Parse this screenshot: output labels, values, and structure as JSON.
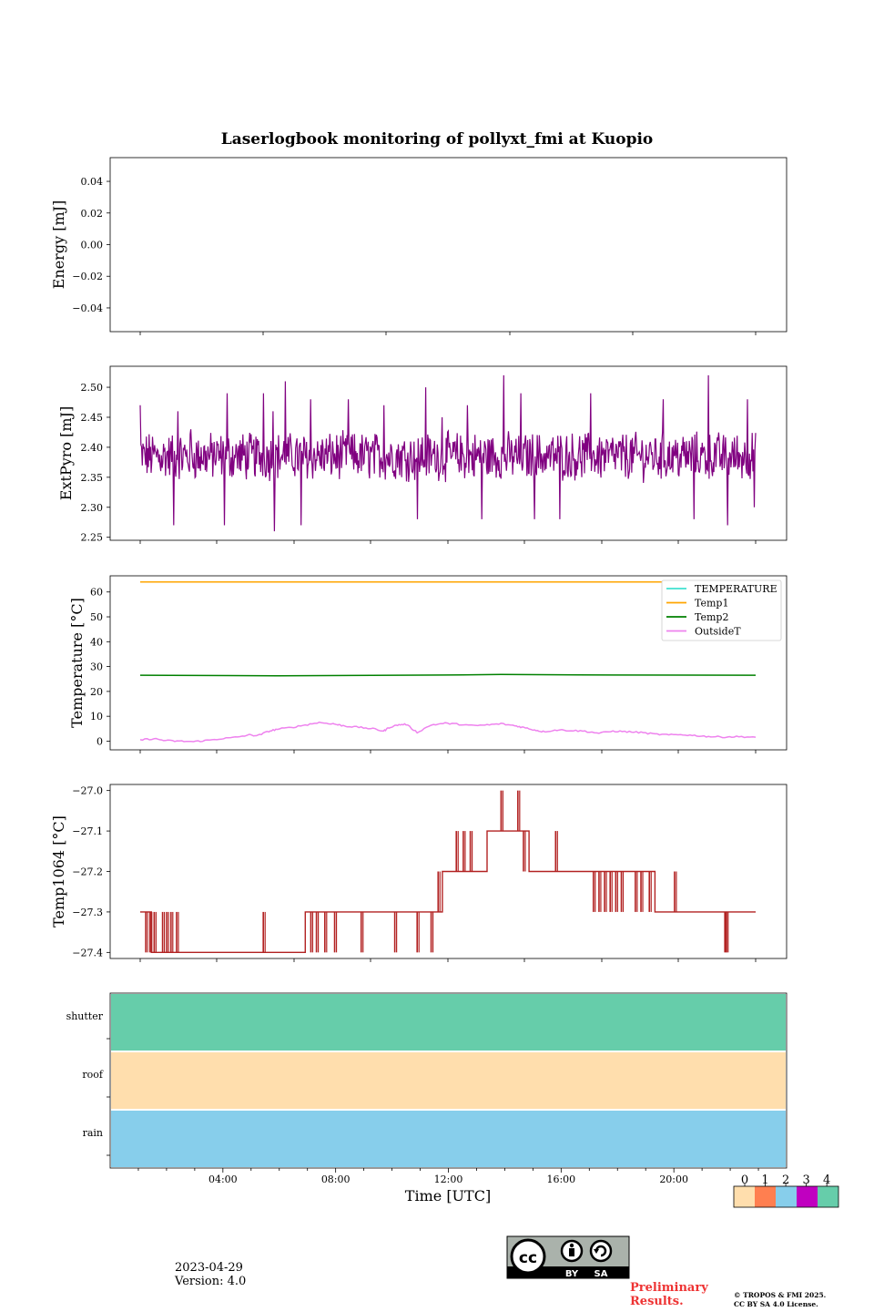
{
  "colors": {
    "pyro": "#800080",
    "temperature": "#40e0d0",
    "temp1": "#ffa500",
    "temp2": "#008000",
    "outsideT": "#ee82ee",
    "temp1064": "#b22222",
    "status": [
      "#ffdead",
      "#ff7f50",
      "#87ceeb",
      "#c000c0",
      "#66cdaa"
    ]
  },
  "chart_data": [
    {
      "id": "energy",
      "type": "line",
      "title": "Laserlogbook monitoring of pollyxt_fmi at Kuopio",
      "xlabel": "",
      "ylabel": "Energy [mJ]",
      "ylim": [
        -0.055,
        0.055
      ],
      "yticks": [
        0.04,
        0.02,
        0.0,
        -0.02,
        -0.04
      ],
      "ytick_labels": [
        "0.04",
        "0.02",
        "0.00",
        "−0.02",
        "−0.04"
      ],
      "series": []
    },
    {
      "id": "pyro",
      "type": "line",
      "ylabel": "ExtPyro [mJ]",
      "ylim": [
        2.245,
        2.535
      ],
      "yticks": [
        2.5,
        2.45,
        2.4,
        2.35,
        2.3,
        2.25
      ],
      "ytick_labels": [
        "2.50",
        "2.45",
        "2.40",
        "2.35",
        "2.30",
        "2.25"
      ],
      "series": [
        {
          "name": "ExtPyro",
          "color": "#800080",
          "mean": 2.385,
          "spread": 0.035,
          "x_start": 1.1,
          "x_end": 23.1,
          "spikes": [
            [
              1.1,
              2.47
            ],
            [
              2.3,
              2.27
            ],
            [
              2.45,
              2.46
            ],
            [
              2.9,
              2.43
            ],
            [
              4.1,
              2.27
            ],
            [
              4.2,
              2.49
            ],
            [
              5.5,
              2.49
            ],
            [
              5.85,
              2.46
            ],
            [
              5.9,
              2.26
            ],
            [
              6.3,
              2.51
            ],
            [
              6.85,
              2.27
            ],
            [
              7.2,
              2.48
            ],
            [
              8.55,
              2.48
            ],
            [
              9.8,
              2.47
            ],
            [
              11.0,
              2.28
            ],
            [
              11.3,
              2.5
            ],
            [
              11.9,
              2.45
            ],
            [
              12.8,
              2.47
            ],
            [
              13.3,
              2.28
            ],
            [
              14.1,
              2.52
            ],
            [
              14.7,
              2.49
            ],
            [
              15.2,
              2.28
            ],
            [
              16.1,
              2.28
            ],
            [
              17.2,
              2.49
            ],
            [
              19.8,
              2.48
            ],
            [
              20.9,
              2.28
            ],
            [
              21.4,
              2.52
            ],
            [
              22.1,
              2.27
            ],
            [
              22.8,
              2.48
            ],
            [
              23.05,
              2.3
            ]
          ]
        }
      ]
    },
    {
      "id": "temps",
      "type": "line",
      "ylabel": "Temperature [°C]",
      "ylim": [
        -3.5,
        66.5
      ],
      "yticks": [
        60,
        50,
        40,
        30,
        20,
        10,
        0
      ],
      "ytick_labels": [
        "60",
        "50",
        "40",
        "30",
        "20",
        "10",
        "0"
      ],
      "legend": [
        "TEMPERATURE",
        "Temp1",
        "Temp2",
        "OutsideT"
      ],
      "legend_position": "upper right",
      "series": [
        {
          "name": "TEMPERATURE",
          "color": "#40e0d0",
          "x": [],
          "values": []
        },
        {
          "name": "Temp1",
          "color": "#ffa500",
          "x": [
            1.1,
            23.1
          ],
          "values": [
            64.0,
            64.0
          ]
        },
        {
          "name": "Temp2",
          "color": "#008000",
          "x": [
            1.1,
            6,
            12,
            14,
            18,
            23.1
          ],
          "values": [
            26.5,
            26.3,
            26.6,
            26.8,
            26.6,
            26.5
          ]
        },
        {
          "name": "OutsideT",
          "color": "#ee82ee",
          "x": [
            1.1,
            1.6,
            2.0,
            2.5,
            3.0,
            3.5,
            4.0,
            4.5,
            5.0,
            5.3,
            5.7,
            6.0,
            6.5,
            7.0,
            7.5,
            8.0,
            8.2,
            8.5,
            9.0,
            9.5,
            9.8,
            10.0,
            10.3,
            10.6,
            11.0,
            11.5,
            12.0,
            12.5,
            13.0,
            13.5,
            14.0,
            14.5,
            14.8,
            15.2,
            15.5,
            16.0,
            16.5,
            17.0,
            17.5,
            18.0,
            18.5,
            19.0,
            19.5,
            20.0,
            20.5,
            21.0,
            21.5,
            22.0,
            22.5,
            23.1
          ],
          "values": [
            0.5,
            1.0,
            0.2,
            0.0,
            -0.2,
            0.3,
            1.0,
            1.5,
            2.5,
            2.2,
            4.0,
            4.8,
            5.5,
            6.5,
            7.5,
            7.0,
            6.5,
            6.0,
            5.5,
            4.8,
            4.0,
            5.5,
            6.5,
            6.8,
            3.5,
            6.5,
            7.2,
            6.8,
            6.2,
            6.5,
            7.0,
            6.2,
            5.5,
            4.5,
            3.8,
            4.5,
            4.3,
            4.0,
            3.2,
            4.0,
            3.8,
            3.5,
            2.8,
            2.5,
            2.6,
            2.2,
            1.8,
            1.7,
            1.8,
            1.6
          ]
        }
      ]
    },
    {
      "id": "temp1064",
      "type": "line",
      "ylabel": "Temp1064 [°C]",
      "ylim": [
        -27.415,
        -26.985
      ],
      "yticks": [
        -27.0,
        -27.1,
        -27.2,
        -27.3,
        -27.4
      ],
      "ytick_labels": [
        "−27.0",
        "−27.1",
        "−27.2",
        "−27.3",
        "−27.4"
      ],
      "series": [
        {
          "name": "Temp1064",
          "color": "#b22222",
          "levels": [
            [
              1.1,
              1.5,
              -27.3
            ],
            [
              1.5,
              2.5,
              -27.4
            ],
            [
              2.5,
              5.5,
              -27.4
            ],
            [
              5.5,
              7.0,
              -27.4
            ],
            [
              7.0,
              11.9,
              -27.3
            ],
            [
              11.9,
              13.5,
              -27.2
            ],
            [
              13.5,
              15.0,
              -27.1
            ],
            [
              15.0,
              17.3,
              -27.2
            ],
            [
              17.3,
              19.5,
              -27.2
            ],
            [
              19.5,
              21.5,
              -27.3
            ],
            [
              21.5,
              23.1,
              -27.3
            ]
          ],
          "glitches": [
            [
              1.3,
              -27.4
            ],
            [
              1.45,
              -27.4
            ],
            [
              1.6,
              -27.3
            ],
            [
              1.9,
              -27.3
            ],
            [
              1.95,
              -27.4
            ],
            [
              2.05,
              -27.3
            ],
            [
              2.1,
              -27.4
            ],
            [
              2.2,
              -27.3
            ],
            [
              2.3,
              -27.4
            ],
            [
              2.4,
              -27.3
            ],
            [
              5.5,
              -27.3
            ],
            [
              7.1,
              -27.3
            ],
            [
              7.2,
              -27.4
            ],
            [
              7.3,
              -27.3
            ],
            [
              7.4,
              -27.4
            ],
            [
              7.5,
              -27.3
            ],
            [
              7.7,
              -27.4
            ],
            [
              8.05,
              -27.4
            ],
            [
              9.0,
              -27.4
            ],
            [
              10.2,
              -27.4
            ],
            [
              11.0,
              -27.4
            ],
            [
              11.5,
              -27.4
            ],
            [
              11.75,
              -27.2
            ],
            [
              12.4,
              -27.1
            ],
            [
              12.65,
              -27.1
            ],
            [
              12.9,
              -27.1
            ],
            [
              13.0,
              -27.2
            ],
            [
              13.4,
              -27.2
            ],
            [
              14.0,
              -27.0
            ],
            [
              14.6,
              -27.0
            ],
            [
              14.8,
              -27.2
            ],
            [
              15.2,
              -27.2
            ],
            [
              15.5,
              -27.2
            ],
            [
              15.95,
              -27.1
            ],
            [
              17.3,
              -27.3
            ],
            [
              17.5,
              -27.3
            ],
            [
              17.7,
              -27.3
            ],
            [
              17.9,
              -27.3
            ],
            [
              18.1,
              -27.3
            ],
            [
              18.3,
              -27.3
            ],
            [
              18.8,
              -27.3
            ],
            [
              19.0,
              -27.3
            ],
            [
              19.3,
              -27.3
            ],
            [
              19.6,
              -27.3
            ],
            [
              20.2,
              -27.2
            ],
            [
              22.0,
              -27.4
            ],
            [
              22.05,
              -27.4
            ]
          ]
        }
      ]
    },
    {
      "id": "status",
      "type": "heatmap",
      "xlabel": "Time [UTC]",
      "rows": [
        "shutter",
        "roof",
        "rain"
      ],
      "row_values": [
        4,
        0,
        2
      ],
      "xticks": [
        "04:00",
        "08:00",
        "12:00",
        "16:00",
        "20:00"
      ],
      "xtick_hours": [
        4,
        8,
        12,
        16,
        20
      ],
      "xlim": [
        0,
        24
      ],
      "colorbar": {
        "ticks": [
          "0",
          "1",
          "2",
          "3",
          "4"
        ],
        "colors": [
          "#ffdead",
          "#ff7f50",
          "#87ceeb",
          "#c000c0",
          "#66cdaa"
        ]
      }
    }
  ],
  "footer": {
    "date": "2023-04-29",
    "version": "Version: 4.0",
    "license_badge": {
      "cc": "cc",
      "by": "BY",
      "sa": "SA"
    },
    "preliminary_line1": "Preliminary",
    "preliminary_line2": "Results.",
    "copyright_line1": "© TROPOS & FMI 2025.",
    "copyright_line2": "CC BY SA 4.0 License."
  }
}
